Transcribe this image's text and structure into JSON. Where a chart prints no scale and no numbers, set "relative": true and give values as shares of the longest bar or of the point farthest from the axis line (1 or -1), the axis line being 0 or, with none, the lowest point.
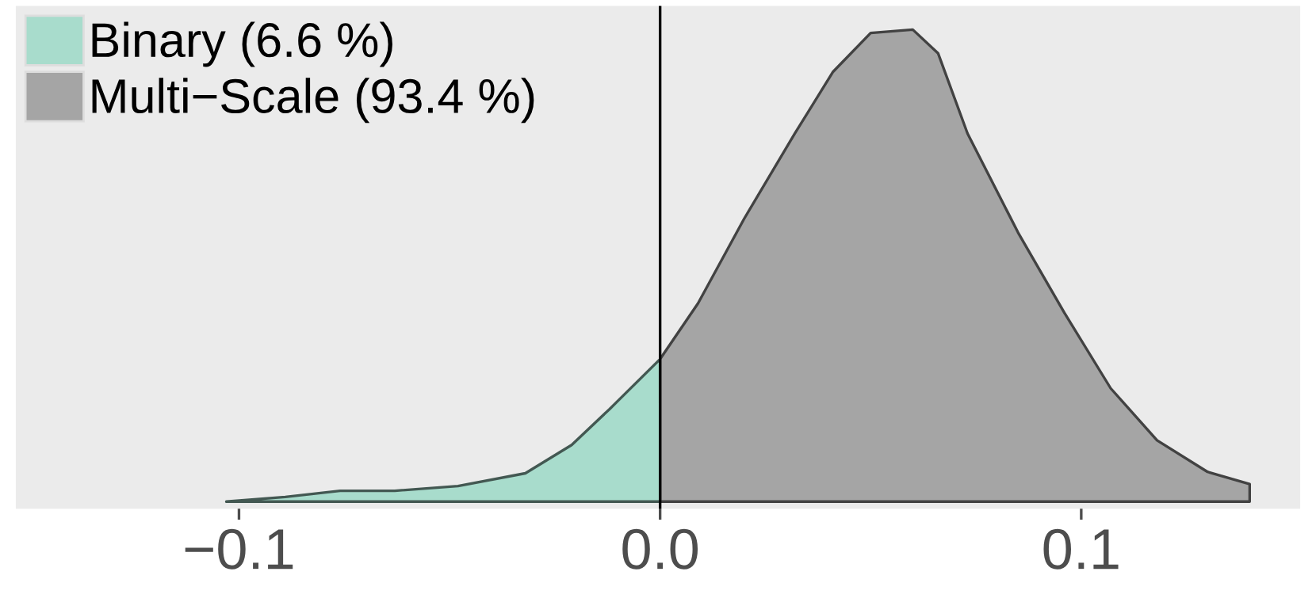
{
  "chart_data": {
    "type": "area",
    "relative": true,
    "series": [
      {
        "name": "Binary (6.6 %)",
        "color": "#a8dccc",
        "x": [
          -0.103,
          -0.089,
          -0.076,
          -0.063,
          -0.048,
          -0.032,
          -0.021,
          -0.012,
          0.0
        ],
        "values": [
          0,
          0.01,
          0.023,
          0.023,
          0.033,
          0.06,
          0.12,
          0.196,
          0.302
        ]
      },
      {
        "name": "Multi−Scale (93.4 %)",
        "color": "#a5a5a5",
        "x": [
          0.0,
          0.009,
          0.02,
          0.032,
          0.041,
          0.05,
          0.06,
          0.066,
          0.073,
          0.085,
          0.096,
          0.107,
          0.118,
          0.13,
          0.14
        ],
        "values": [
          0.302,
          0.42,
          0.6,
          0.78,
          0.91,
          0.993,
          1.0,
          0.95,
          0.78,
          0.57,
          0.4,
          0.24,
          0.13,
          0.063,
          0.037
        ]
      }
    ],
    "xlim": [
      -0.153,
      0.152
    ],
    "xticks": [
      {
        "value": -0.1,
        "label": "−0.1"
      },
      {
        "value": 0.0,
        "label": "0.0"
      },
      {
        "value": 0.1,
        "label": "0.1"
      }
    ],
    "ref_lines": [
      {
        "axis": "x",
        "value": 0.0,
        "color": "#000000"
      }
    ],
    "legend": "top left",
    "grid": false,
    "tick_labels": "x"
  }
}
